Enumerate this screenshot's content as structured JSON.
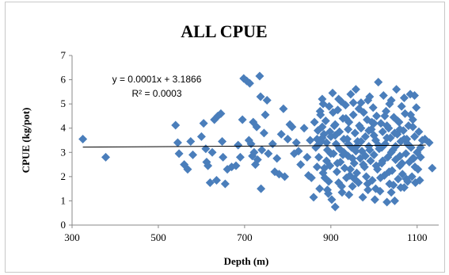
{
  "chart_data": {
    "type": "scatter",
    "title": "ALL CPUE",
    "xlabel": "Depth (m)",
    "ylabel": "CPUE (kg/pot)",
    "xlim": [
      300,
      1150
    ],
    "ylim": [
      0,
      7
    ],
    "x_ticks": [
      300,
      500,
      700,
      900,
      1100
    ],
    "y_ticks": [
      0,
      1,
      2,
      3,
      4,
      5,
      6,
      7
    ],
    "grid": false,
    "legend": "none",
    "marker_color": "#4a7ebb",
    "marker": "diamond",
    "trendline": {
      "type": "linear",
      "slope": 0.0001,
      "intercept": 3.1866,
      "equation_label": "y = 0.0001x + 3.1866",
      "r2_label": "R² = 0.0003",
      "x_range": [
        325,
        1120
      ],
      "color": "#000000"
    },
    "points": [
      [
        325,
        3.55
      ],
      [
        378,
        2.8
      ],
      [
        540,
        4.12
      ],
      [
        545,
        3.4
      ],
      [
        548,
        2.95
      ],
      [
        560,
        2.5
      ],
      [
        568,
        2.3
      ],
      [
        575,
        3.45
      ],
      [
        580,
        2.9
      ],
      [
        600,
        3.65
      ],
      [
        605,
        4.2
      ],
      [
        610,
        3.15
      ],
      [
        612,
        2.6
      ],
      [
        615,
        2.45
      ],
      [
        620,
        1.75
      ],
      [
        625,
        3.0
      ],
      [
        630,
        4.35
      ],
      [
        635,
        1.85
      ],
      [
        638,
        4.5
      ],
      [
        645,
        4.6
      ],
      [
        648,
        3.45
      ],
      [
        650,
        2.8
      ],
      [
        655,
        1.7
      ],
      [
        660,
        2.3
      ],
      [
        670,
        2.4
      ],
      [
        680,
        2.45
      ],
      [
        685,
        3.3
      ],
      [
        690,
        2.8
      ],
      [
        695,
        4.35
      ],
      [
        698,
        6.05
      ],
      [
        705,
        5.95
      ],
      [
        710,
        3.5
      ],
      [
        712,
        5.85
      ],
      [
        715,
        3.35
      ],
      [
        718,
        2.85
      ],
      [
        720,
        4.25
      ],
      [
        722,
        3.0
      ],
      [
        725,
        2.5
      ],
      [
        728,
        4.05
      ],
      [
        730,
        2.7
      ],
      [
        735,
        6.15
      ],
      [
        737,
        5.3
      ],
      [
        738,
        1.5
      ],
      [
        740,
        3.1
      ],
      [
        745,
        3.8
      ],
      [
        748,
        4.55
      ],
      [
        752,
        5.15
      ],
      [
        755,
        2.95
      ],
      [
        765,
        3.35
      ],
      [
        770,
        2.2
      ],
      [
        775,
        2.75
      ],
      [
        780,
        2.1
      ],
      [
        785,
        3.75
      ],
      [
        790,
        4.8
      ],
      [
        793,
        2.0
      ],
      [
        800,
        3.55
      ],
      [
        805,
        4.15
      ],
      [
        810,
        4.05
      ],
      [
        815,
        2.95
      ],
      [
        820,
        3.4
      ],
      [
        825,
        3.05
      ],
      [
        830,
        2.5
      ],
      [
        838,
        4.0
      ],
      [
        845,
        2.8
      ],
      [
        848,
        2.05
      ],
      [
        852,
        3.5
      ],
      [
        855,
        1.95
      ],
      [
        860,
        1.15
      ],
      [
        862,
        4.25
      ],
      [
        865,
        3.2
      ],
      [
        868,
        2.4
      ],
      [
        870,
        3.9
      ],
      [
        872,
        2.8
      ],
      [
        874,
        1.5
      ],
      [
        876,
        4.55
      ],
      [
        878,
        3.45
      ],
      [
        880,
        5.2
      ],
      [
        882,
        2.15
      ],
      [
        884,
        3.75
      ],
      [
        886,
        1.95
      ],
      [
        888,
        4.3
      ],
      [
        890,
        2.65
      ],
      [
        892,
        3.1
      ],
      [
        894,
        1.3
      ],
      [
        896,
        4.9
      ],
      [
        898,
        2.45
      ],
      [
        900,
        3.65
      ],
      [
        902,
        1.05
      ],
      [
        904,
        5.45
      ],
      [
        906,
        2.95
      ],
      [
        908,
        4.1
      ],
      [
        910,
        0.75
      ],
      [
        912,
        3.35
      ],
      [
        914,
        2.2
      ],
      [
        916,
        4.75
      ],
      [
        918,
        1.75
      ],
      [
        920,
        3.85
      ],
      [
        922,
        2.6
      ],
      [
        924,
        5.1
      ],
      [
        926,
        1.35
      ],
      [
        928,
        4.4
      ],
      [
        930,
        3.0
      ],
      [
        932,
        2.35
      ],
      [
        934,
        4.95
      ],
      [
        936,
        1.95
      ],
      [
        938,
        3.55
      ],
      [
        940,
        2.85
      ],
      [
        942,
        4.25
      ],
      [
        944,
        2.05
      ],
      [
        946,
        5.4
      ],
      [
        948,
        3.2
      ],
      [
        950,
        1.6
      ],
      [
        952,
        4.55
      ],
      [
        954,
        2.55
      ],
      [
        956,
        3.8
      ],
      [
        958,
        5.6
      ],
      [
        960,
        2.15
      ],
      [
        962,
        3.45
      ],
      [
        964,
        1.75
      ],
      [
        966,
        4.1
      ],
      [
        968,
        2.75
      ],
      [
        970,
        5.05
      ],
      [
        972,
        3.05
      ],
      [
        974,
        1.15
      ],
      [
        976,
        4.65
      ],
      [
        978,
        2.4
      ],
      [
        980,
        3.65
      ],
      [
        982,
        2.0
      ],
      [
        984,
        4.35
      ],
      [
        986,
        1.45
      ],
      [
        988,
        3.25
      ],
      [
        990,
        5.3
      ],
      [
        992,
        2.65
      ],
      [
        994,
        3.95
      ],
      [
        996,
        1.85
      ],
      [
        998,
        4.85
      ],
      [
        1000,
        2.9
      ],
      [
        1002,
        1.05
      ],
      [
        1004,
        3.5
      ],
      [
        1006,
        4.5
      ],
      [
        1008,
        2.3
      ],
      [
        1010,
        5.9
      ],
      [
        1012,
        3.15
      ],
      [
        1014,
        1.4
      ],
      [
        1016,
        4.2
      ],
      [
        1018,
        2.55
      ],
      [
        1020,
        3.85
      ],
      [
        1022,
        5.35
      ],
      [
        1024,
        2.05
      ],
      [
        1026,
        3.35
      ],
      [
        1028,
        4.7
      ],
      [
        1030,
        0.95
      ],
      [
        1032,
        2.8
      ],
      [
        1034,
        4.0
      ],
      [
        1036,
        1.7
      ],
      [
        1038,
        3.6
      ],
      [
        1040,
        5.15
      ],
      [
        1042,
        2.25
      ],
      [
        1044,
        3.1
      ],
      [
        1046,
        4.45
      ],
      [
        1048,
        1.0
      ],
      [
        1050,
        2.7
      ],
      [
        1052,
        5.6
      ],
      [
        1054,
        3.75
      ],
      [
        1056,
        1.9
      ],
      [
        1058,
        4.25
      ],
      [
        1060,
        2.45
      ],
      [
        1062,
        3.45
      ],
      [
        1064,
        4.9
      ],
      [
        1066,
        2.1
      ],
      [
        1068,
        3.9
      ],
      [
        1070,
        1.55
      ],
      [
        1072,
        4.6
      ],
      [
        1074,
        2.95
      ],
      [
        1076,
        3.55
      ],
      [
        1078,
        1.8
      ],
      [
        1080,
        4.1
      ],
      [
        1082,
        2.6
      ],
      [
        1084,
        5.4
      ],
      [
        1086,
        3.2
      ],
      [
        1088,
        2.0
      ],
      [
        1090,
        4.35
      ],
      [
        1092,
        2.75
      ],
      [
        1094,
        3.65
      ],
      [
        1096,
        1.75
      ],
      [
        1098,
        4.85
      ],
      [
        1100,
        3.0
      ],
      [
        1102,
        2.3
      ],
      [
        1104,
        3.85
      ],
      [
        1106,
        1.85
      ],
      [
        1108,
        2.8
      ],
      [
        1112,
        3.5
      ],
      [
        1118,
        3.55
      ],
      [
        1128,
        3.4
      ],
      [
        1135,
        2.35
      ],
      [
        870,
        3.3
      ],
      [
        880,
        3.6
      ],
      [
        890,
        3.4
      ],
      [
        900,
        2.95
      ],
      [
        910,
        3.7
      ],
      [
        920,
        3.15
      ],
      [
        930,
        3.55
      ],
      [
        940,
        3.35
      ],
      [
        950,
        2.75
      ],
      [
        960,
        3.25
      ],
      [
        970,
        3.45
      ],
      [
        980,
        2.85
      ],
      [
        990,
        3.1
      ],
      [
        1000,
        3.7
      ],
      [
        1010,
        3.3
      ],
      [
        1020,
        2.65
      ],
      [
        1030,
        3.6
      ],
      [
        1040,
        3.0
      ],
      [
        1050,
        3.25
      ],
      [
        1060,
        2.85
      ],
      [
        1070,
        3.55
      ],
      [
        1080,
        3.3
      ],
      [
        1090,
        2.75
      ],
      [
        875,
        4.7
      ],
      [
        905,
        4.65
      ],
      [
        935,
        4.4
      ],
      [
        965,
        4.8
      ],
      [
        995,
        4.25
      ],
      [
        1025,
        4.5
      ],
      [
        1055,
        4.3
      ],
      [
        1085,
        4.55
      ],
      [
        885,
        2.35
      ],
      [
        915,
        2.55
      ],
      [
        945,
        2.3
      ],
      [
        975,
        2.5
      ],
      [
        1005,
        2.45
      ],
      [
        1035,
        2.2
      ],
      [
        1065,
        2.55
      ],
      [
        1095,
        2.4
      ],
      [
        895,
        1.8
      ],
      [
        925,
        1.6
      ],
      [
        955,
        1.9
      ],
      [
        985,
        1.7
      ],
      [
        1015,
        1.95
      ],
      [
        1045,
        1.65
      ],
      [
        1075,
        1.9
      ],
      [
        880,
        4.05
      ],
      [
        910,
        4.15
      ],
      [
        940,
        3.95
      ],
      [
        970,
        4.0
      ],
      [
        1000,
        4.2
      ],
      [
        1030,
        4.1
      ],
      [
        1060,
        3.95
      ],
      [
        1090,
        4.05
      ],
      [
        868,
        3.55
      ],
      [
        898,
        3.85
      ],
      [
        928,
        2.9
      ],
      [
        958,
        3.05
      ],
      [
        988,
        3.9
      ],
      [
        1018,
        3.2
      ],
      [
        1048,
        3.8
      ],
      [
        1078,
        3.35
      ],
      [
        1108,
        3.2
      ],
      [
        882,
        5.0
      ],
      [
        918,
        5.2
      ],
      [
        952,
        5.05
      ],
      [
        986,
        5.15
      ],
      [
        1036,
        5.0
      ],
      [
        1070,
        5.25
      ],
      [
        1094,
        5.35
      ],
      [
        892,
        1.45
      ],
      [
        942,
        1.25
      ],
      [
        1004,
        1.5
      ],
      [
        1040,
        1.35
      ],
      [
        1062,
        1.55
      ]
    ]
  }
}
